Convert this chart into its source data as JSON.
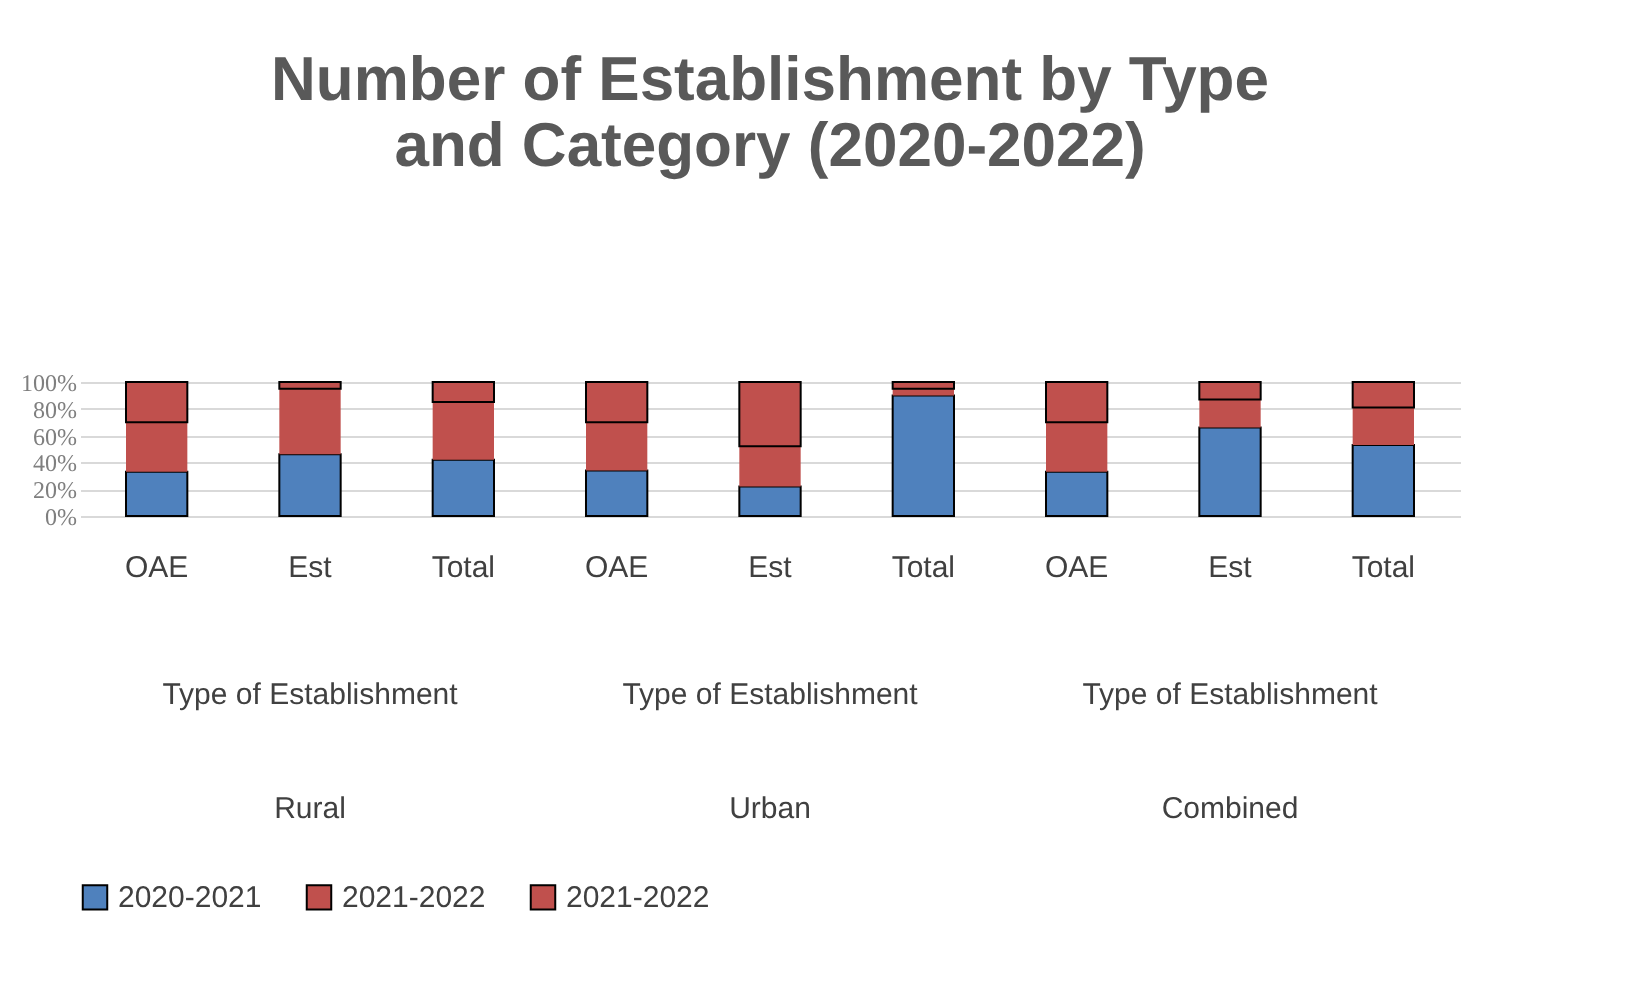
{
  "chart_data": {
    "type": "bar",
    "title": [
      "Number of Establishment by Type",
      "and Category (2020-2022)"
    ],
    "categories": [
      "OAE",
      "Est",
      "Total",
      "OAE",
      "Est",
      "Total",
      "OAE",
      "Est",
      "Total"
    ],
    "stacked": true,
    "series": [
      {
        "name": "2020-2021",
        "color": "#4f81bd",
        "values": [
          33,
          46,
          42,
          34,
          22,
          90,
          33,
          66,
          53
        ]
      },
      {
        "name": "2021-2022",
        "color": "#c0504d",
        "values": [
          37,
          49,
          43,
          36,
          30,
          5,
          37,
          21,
          28
        ]
      },
      {
        "name": "2021-2022",
        "color": "#c0504d",
        "values": [
          30,
          5,
          15,
          30,
          48,
          5,
          30,
          13,
          19
        ]
      }
    ],
    "ylim": [
      0,
      100
    ],
    "yticks": [
      {
        "value": 0,
        "label": "0%"
      },
      {
        "value": 20,
        "label": "20%"
      },
      {
        "value": 40,
        "label": "40%"
      },
      {
        "value": 60,
        "label": "60%"
      },
      {
        "value": 80,
        "label": "80%"
      },
      {
        "value": 100,
        "label": "100%"
      }
    ],
    "annotations": [
      "Type of Establishment",
      "Type of Establishment",
      "Type of Establishment",
      "Rural",
      "Urban",
      "Combined"
    ],
    "grid": "y",
    "legend": "bottom"
  }
}
